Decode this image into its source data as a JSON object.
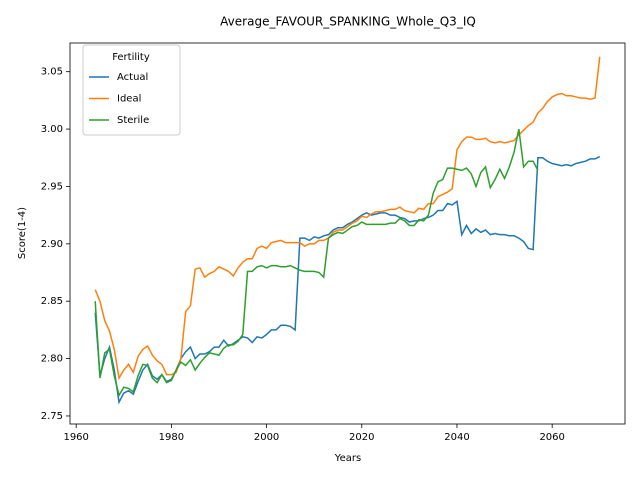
{
  "chart_data": {
    "type": "line",
    "title": "Average_FAVOUR_SPANKING_Whole_Q3_IQ",
    "x_label": "Years",
    "y_label": "Score(1-4)",
    "legend_title": "Fertility",
    "legend_loc": "upper left",
    "grid": false,
    "xlim": [
      1958.7,
      2075.3
    ],
    "ylim": [
      2.743,
      3.075
    ],
    "xticks": [
      1960,
      1980,
      2000,
      2020,
      2040,
      2060
    ],
    "yticks": [
      2.75,
      {
        "value": 2.8,
        "label": "2.80"
      },
      2.85,
      {
        "value": 2.9,
        "label": "2.90"
      },
      2.95,
      {
        "value": 3.0,
        "label": "3.00"
      },
      3.05
    ],
    "x": [
      1964,
      1965,
      1966,
      1967,
      1968,
      1969,
      1970,
      1971,
      1972,
      1973,
      1974,
      1975,
      1976,
      1977,
      1978,
      1979,
      1980,
      1981,
      1982,
      1983,
      1984,
      1985,
      1986,
      1987,
      1988,
      1989,
      1990,
      1991,
      1992,
      1993,
      1994,
      1995,
      1996,
      1997,
      1998,
      1999,
      2000,
      2001,
      2002,
      2003,
      2004,
      2005,
      2006,
      2007,
      2008,
      2009,
      2010,
      2011,
      2012,
      2013,
      2014,
      2015,
      2016,
      2017,
      2018,
      2019,
      2020,
      2021,
      2022,
      2023,
      2024,
      2025,
      2026,
      2027,
      2028,
      2029,
      2030,
      2031,
      2032,
      2033,
      2034,
      2035,
      2036,
      2037,
      2038,
      2039,
      2040,
      2041,
      2042,
      2043,
      2044,
      2045,
      2046,
      2047,
      2048,
      2049,
      2050,
      2051,
      2052,
      2053,
      2054,
      2055,
      2056,
      2057,
      2058,
      2059,
      2060,
      2061,
      2062,
      2063,
      2064,
      2065,
      2066,
      2067,
      2068,
      2069,
      2070
    ],
    "series": [
      {
        "name": "Actual",
        "color": "#1f77b4",
        "values": [
          2.84,
          2.785,
          2.8,
          2.81,
          2.79,
          2.762,
          2.77,
          2.772,
          2.769,
          2.78,
          2.79,
          2.795,
          2.785,
          2.782,
          2.786,
          2.78,
          2.782,
          2.79,
          2.8,
          2.806,
          2.81,
          2.8,
          2.804,
          2.804,
          2.806,
          2.81,
          2.81,
          2.816,
          2.811,
          2.813,
          2.816,
          2.819,
          2.818,
          2.814,
          2.819,
          2.818,
          2.821,
          2.825,
          2.825,
          2.829,
          2.829,
          2.828,
          2.825,
          2.905,
          2.905,
          2.903,
          2.906,
          2.905,
          2.907,
          2.908,
          2.912,
          2.914,
          2.914,
          2.917,
          2.919,
          2.922,
          2.925,
          2.927,
          2.925,
          2.926,
          2.927,
          2.927,
          2.925,
          2.925,
          2.923,
          2.922,
          2.919,
          2.92,
          2.92,
          2.922,
          2.923,
          2.925,
          2.929,
          2.929,
          2.935,
          2.934,
          2.937,
          2.908,
          2.916,
          2.909,
          2.913,
          2.91,
          2.912,
          2.908,
          2.909,
          2.908,
          2.908,
          2.907,
          2.907,
          2.905,
          2.902,
          2.896,
          2.895,
          2.975,
          2.975,
          2.972,
          2.97,
          2.969,
          2.968,
          2.969,
          2.968,
          2.97,
          2.971,
          2.972,
          2.974,
          2.974,
          2.976
        ]
      },
      {
        "name": "Ideal",
        "color": "#ff7f0e",
        "values": [
          2.86,
          2.85,
          2.833,
          2.824,
          2.808,
          2.783,
          2.79,
          2.795,
          2.788,
          2.802,
          2.808,
          2.811,
          2.803,
          2.798,
          2.795,
          2.786,
          2.786,
          2.788,
          2.8,
          2.841,
          2.846,
          2.878,
          2.879,
          2.871,
          2.874,
          2.876,
          2.88,
          2.878,
          2.876,
          2.872,
          2.879,
          2.884,
          2.887,
          2.887,
          2.896,
          2.898,
          2.896,
          2.901,
          2.902,
          2.903,
          2.901,
          2.901,
          2.901,
          2.901,
          2.898,
          2.9,
          2.9,
          2.903,
          2.903,
          2.905,
          2.91,
          2.912,
          2.912,
          2.915,
          2.918,
          2.92,
          2.924,
          2.923,
          2.926,
          2.928,
          2.928,
          2.929,
          2.93,
          2.93,
          2.932,
          2.929,
          2.928,
          2.927,
          2.931,
          2.93,
          2.935,
          2.935,
          2.941,
          2.943,
          2.945,
          2.948,
          2.982,
          2.989,
          2.993,
          2.993,
          2.991,
          2.991,
          2.992,
          2.989,
          2.988,
          2.989,
          2.988,
          2.989,
          2.99,
          2.995,
          2.999,
          3.003,
          3.006,
          3.014,
          3.018,
          3.024,
          3.028,
          3.03,
          3.031,
          3.029,
          3.029,
          3.028,
          3.027,
          3.027,
          3.026,
          3.027,
          3.063
        ]
      },
      {
        "name": "Sterile",
        "color": "#2ca02c",
        "values": [
          2.85,
          2.783,
          2.805,
          2.808,
          2.785,
          2.768,
          2.775,
          2.774,
          2.771,
          2.785,
          2.795,
          2.794,
          2.783,
          2.779,
          2.786,
          2.779,
          2.781,
          2.79,
          2.797,
          2.794,
          2.799,
          2.79,
          2.796,
          2.801,
          2.805,
          2.804,
          2.803,
          2.809,
          2.812,
          2.812,
          2.815,
          2.821,
          2.876,
          2.876,
          2.88,
          2.881,
          2.879,
          2.881,
          2.881,
          2.88,
          2.88,
          2.881,
          2.879,
          2.877,
          2.876,
          2.876,
          2.876,
          2.875,
          2.871,
          2.905,
          2.908,
          2.91,
          2.909,
          2.912,
          2.915,
          2.916,
          2.919,
          2.917,
          2.917,
          2.917,
          2.917,
          2.917,
          2.918,
          2.918,
          2.922,
          2.92,
          2.916,
          2.916,
          2.921,
          2.92,
          2.925,
          2.944,
          2.954,
          2.956,
          2.966,
          2.966,
          2.965,
          2.964,
          2.966,
          2.961,
          2.95,
          2.962,
          2.967,
          2.949,
          2.956,
          2.965,
          2.957,
          2.967,
          2.98,
          3.0,
          2.967,
          2.972,
          2.972,
          2.964,
          null,
          null,
          null,
          null,
          null,
          null,
          null,
          null,
          null,
          null,
          null,
          null,
          null
        ]
      }
    ]
  }
}
